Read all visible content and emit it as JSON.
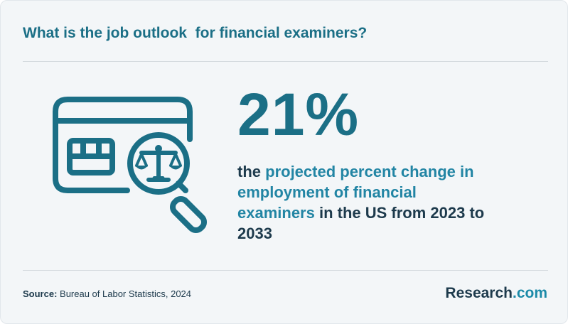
{
  "header": {
    "title": "What is the job outlook  for financial examiners?"
  },
  "stat": {
    "value": "21%",
    "prefix": "the ",
    "highlight": "projected percent change in employment of financial examiners",
    "suffix": " in the US from 2023 to 2033"
  },
  "footer": {
    "source_label": "Source:",
    "source_text": " Bureau of Labor Statistics, 2024",
    "logo_main": "Research",
    "logo_domain": ".com"
  },
  "icon": {
    "name": "card-magnifier-scales-icon"
  },
  "colors": {
    "accent": "#1b6f86",
    "highlight": "#2285a4",
    "text": "#1d3a4c",
    "background": "#f3f6f8"
  }
}
